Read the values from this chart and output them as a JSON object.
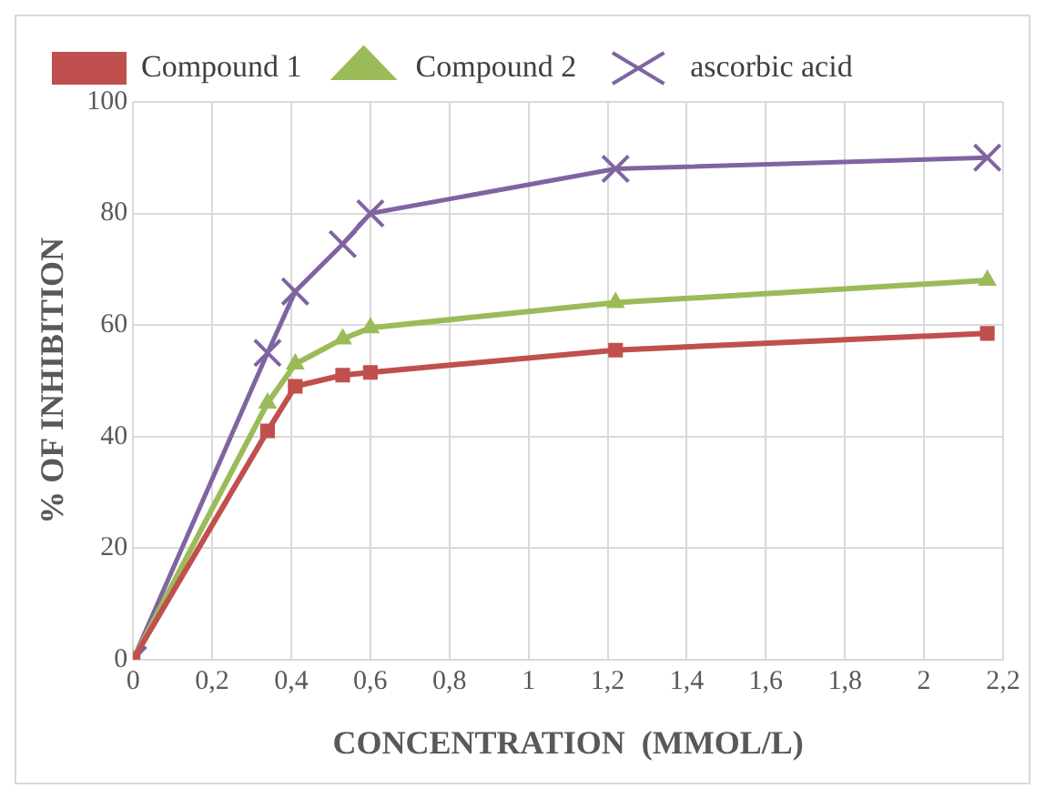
{
  "chart_data": {
    "type": "line",
    "xlabel": "CONCENTRATION  (MMOL/L)",
    "ylabel": "% OF INHIBITION",
    "x": [
      0,
      0.34,
      0.41,
      0.53,
      0.6,
      1.22,
      2.16
    ],
    "series": [
      {
        "name": "Compound 1",
        "color": "#c0504d",
        "marker": "square",
        "values": [
          0,
          41,
          49,
          51,
          51.5,
          55.5,
          58.5
        ]
      },
      {
        "name": "Compound 2",
        "color": "#9bbb59",
        "marker": "triangle",
        "values": [
          0,
          46,
          53,
          57.5,
          59.5,
          64,
          68
        ]
      },
      {
        "name": "ascorbic acid",
        "color": "#8064a2",
        "marker": "cross",
        "values": [
          0,
          55,
          66,
          74.5,
          80,
          88,
          90
        ]
      }
    ],
    "xlim": [
      0,
      2.2
    ],
    "xticks": [
      0,
      {
        "value": 0.2,
        "label": "0,2"
      },
      {
        "value": 0.4,
        "label": "0,4"
      },
      {
        "value": 0.6,
        "label": "0,6"
      },
      {
        "value": 0.8,
        "label": "0,8"
      },
      1,
      {
        "value": 1.2,
        "label": "1,2"
      },
      {
        "value": 1.4,
        "label": "1,4"
      },
      {
        "value": 1.6,
        "label": "1,6"
      },
      {
        "value": 1.8,
        "label": "1,8"
      },
      2,
      {
        "value": 2.2,
        "label": "2,2"
      }
    ],
    "ylim": [
      0,
      100
    ],
    "yticks": [
      0,
      20,
      40,
      60,
      80,
      100
    ],
    "grid": true,
    "legend": "top",
    "line_style": "solid"
  }
}
